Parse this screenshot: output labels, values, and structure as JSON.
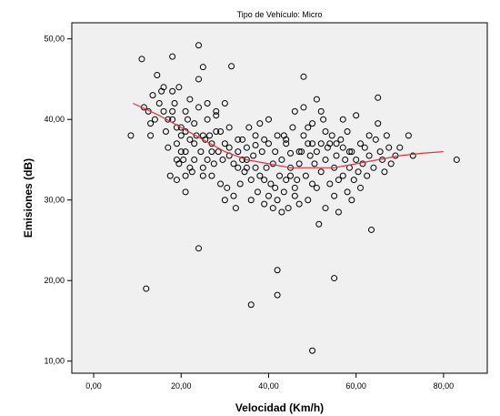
{
  "chart_data": {
    "type": "scatter",
    "title": "Tipo de Vehículo: Micro",
    "xlabel": "Velocidad (Km/h)",
    "ylabel": "Emisiones (dB)",
    "xlim": [
      -5,
      90
    ],
    "ylim": [
      8.5,
      52
    ],
    "x_ticks": [
      0,
      20,
      40,
      60,
      80
    ],
    "x_tick_labels": [
      "0,00",
      "20,00",
      "40,00",
      "60,00",
      "80,00"
    ],
    "y_ticks": [
      10,
      20,
      30,
      40,
      50
    ],
    "y_tick_labels": [
      "10,00",
      "20,00",
      "30,00",
      "40,00",
      "50,00"
    ],
    "grid": false,
    "plot_background": "#f0f0f0",
    "marker_color": "#000000",
    "fit_line_color": "#e8323c",
    "series": [
      {
        "kind": "points",
        "points": [
          [
            8.5,
            38
          ],
          [
            11,
            47.5
          ],
          [
            11.5,
            41.5
          ],
          [
            12,
            19
          ],
          [
            12.5,
            41
          ],
          [
            13,
            38
          ],
          [
            13,
            39.5
          ],
          [
            13.5,
            43
          ],
          [
            14.5,
            45.5
          ],
          [
            15,
            42
          ],
          [
            15.5,
            43.5
          ],
          [
            16,
            44
          ],
          [
            16.5,
            38.5
          ],
          [
            17,
            36.5
          ],
          [
            17,
            40
          ],
          [
            17.5,
            33
          ],
          [
            18,
            47.8
          ],
          [
            18,
            43.5
          ],
          [
            18,
            41
          ],
          [
            18,
            40
          ],
          [
            18.5,
            42
          ],
          [
            19,
            32.5
          ],
          [
            19,
            35
          ],
          [
            19,
            37
          ],
          [
            19.5,
            44
          ],
          [
            19.5,
            34.5
          ],
          [
            20,
            36
          ],
          [
            20,
            38
          ],
          [
            20,
            39
          ],
          [
            20.5,
            35
          ],
          [
            21,
            31
          ],
          [
            21,
            33
          ],
          [
            21,
            36
          ],
          [
            21,
            41
          ],
          [
            21.5,
            40
          ],
          [
            22,
            34
          ],
          [
            22,
            37.5
          ],
          [
            22.5,
            33.5
          ],
          [
            23,
            35
          ],
          [
            23,
            37
          ],
          [
            23.5,
            38
          ],
          [
            24,
            49.2
          ],
          [
            24,
            45
          ],
          [
            24,
            41.5
          ],
          [
            24,
            24
          ],
          [
            24.5,
            36
          ],
          [
            25,
            34
          ],
          [
            25,
            46.5
          ],
          [
            25,
            33
          ],
          [
            25.5,
            37.5
          ],
          [
            26,
            35
          ],
          [
            26,
            40
          ],
          [
            26.5,
            38
          ],
          [
            27,
            33
          ],
          [
            27,
            37
          ],
          [
            27.5,
            34.5
          ],
          [
            28,
            40.5
          ],
          [
            28,
            41
          ],
          [
            28.5,
            36
          ],
          [
            29,
            32
          ],
          [
            29,
            38.5
          ],
          [
            29.5,
            35
          ],
          [
            30,
            37
          ],
          [
            30,
            30
          ],
          [
            30,
            42
          ],
          [
            30.5,
            31.5
          ],
          [
            31,
            39
          ],
          [
            31,
            36.5
          ],
          [
            31.5,
            46.6
          ],
          [
            32,
            34.5
          ],
          [
            32,
            30.5
          ],
          [
            32.5,
            29
          ],
          [
            33,
            37.5
          ],
          [
            33,
            36
          ],
          [
            33.5,
            32
          ],
          [
            34,
            35
          ],
          [
            34,
            37.5
          ],
          [
            34.5,
            33.5
          ],
          [
            35,
            34
          ],
          [
            35,
            36.5
          ],
          [
            35.5,
            39
          ],
          [
            36,
            30
          ],
          [
            36,
            32.5
          ],
          [
            36,
            17
          ],
          [
            36.5,
            35.5
          ],
          [
            37,
            38
          ],
          [
            37,
            34
          ],
          [
            37.5,
            31
          ],
          [
            38,
            39.5
          ],
          [
            38,
            33
          ],
          [
            38.5,
            36
          ],
          [
            39,
            29.5
          ],
          [
            39,
            32.5
          ],
          [
            39.5,
            34
          ],
          [
            40,
            37
          ],
          [
            40,
            30.5
          ],
          [
            40,
            40
          ],
          [
            40.5,
            32
          ],
          [
            41,
            29
          ],
          [
            41,
            34.5
          ],
          [
            41.5,
            36
          ],
          [
            41.5,
            31.5
          ],
          [
            42,
            38
          ],
          [
            42,
            30
          ],
          [
            42,
            21.3
          ],
          [
            42,
            18.2
          ],
          [
            42.5,
            33
          ],
          [
            43,
            35
          ],
          [
            43,
            28.5
          ],
          [
            43.5,
            31
          ],
          [
            44,
            37.5
          ],
          [
            44,
            32.5
          ],
          [
            44.5,
            29
          ],
          [
            45,
            33
          ],
          [
            45,
            34
          ],
          [
            45.5,
            39
          ],
          [
            46,
            30.5
          ],
          [
            46,
            31.5
          ],
          [
            46.5,
            32.5
          ],
          [
            47,
            34.5
          ],
          [
            47,
            29.5
          ],
          [
            47.5,
            36
          ],
          [
            48,
            41.5
          ],
          [
            48,
            45.3
          ],
          [
            48.5,
            33
          ],
          [
            49,
            37
          ],
          [
            49,
            30
          ],
          [
            49.5,
            35.5
          ],
          [
            50,
            32
          ],
          [
            50,
            39.5
          ],
          [
            50,
            11.3
          ],
          [
            50.5,
            34.5
          ],
          [
            51,
            42.5
          ],
          [
            51,
            31.5
          ],
          [
            51.5,
            27
          ],
          [
            52,
            37
          ],
          [
            52,
            33.5
          ],
          [
            52.5,
            40
          ],
          [
            53,
            29
          ],
          [
            53,
            35
          ],
          [
            53.5,
            36.5
          ],
          [
            54,
            32
          ],
          [
            54.5,
            38
          ],
          [
            55,
            30.5
          ],
          [
            55,
            20.3
          ],
          [
            55,
            34
          ],
          [
            55.5,
            35.5
          ],
          [
            56,
            32.5
          ],
          [
            56,
            28.5
          ],
          [
            56.5,
            37.5
          ],
          [
            57,
            33
          ],
          [
            57,
            40
          ],
          [
            57.5,
            35
          ],
          [
            58,
            31
          ],
          [
            58,
            38.5
          ],
          [
            58.5,
            34
          ],
          [
            59,
            36
          ],
          [
            59,
            30
          ],
          [
            59.5,
            32.5
          ],
          [
            60,
            35
          ],
          [
            60,
            40.5
          ],
          [
            60.5,
            33.5
          ],
          [
            61,
            37
          ],
          [
            61,
            31.5
          ],
          [
            61.5,
            34.5
          ],
          [
            62,
            36.5
          ],
          [
            62.5,
            33
          ],
          [
            63,
            35.5
          ],
          [
            63,
            38
          ],
          [
            63.5,
            26.3
          ],
          [
            64,
            34
          ],
          [
            64.5,
            37.5
          ],
          [
            65,
            42.7
          ],
          [
            65,
            39.5
          ],
          [
            65.5,
            36
          ],
          [
            66,
            35
          ],
          [
            66.5,
            33.5
          ],
          [
            67,
            38
          ],
          [
            67.5,
            36.5
          ],
          [
            68,
            34.5
          ],
          [
            69,
            35.5
          ],
          [
            70,
            36.5
          ],
          [
            72,
            38
          ],
          [
            73,
            35.5
          ],
          [
            83,
            35
          ],
          [
            44,
            37
          ],
          [
            46,
            41
          ],
          [
            49,
            39
          ],
          [
            52,
            41
          ],
          [
            54,
            37
          ],
          [
            47,
            36
          ],
          [
            45,
            35.8
          ],
          [
            43.5,
            38
          ],
          [
            51,
            36
          ],
          [
            53,
            38.5
          ],
          [
            55.5,
            37
          ],
          [
            57,
            36.5
          ],
          [
            58.5,
            36
          ],
          [
            48,
            38
          ],
          [
            50,
            37
          ],
          [
            39,
            37.5
          ],
          [
            37,
            36.8
          ],
          [
            35,
            35
          ],
          [
            33,
            34
          ],
          [
            31,
            35.5
          ],
          [
            27,
            36
          ],
          [
            25,
            38
          ],
          [
            23,
            39.5
          ],
          [
            21,
            38.5
          ],
          [
            19,
            39
          ],
          [
            16,
            41
          ],
          [
            14,
            40
          ],
          [
            22,
            42.5
          ],
          [
            26,
            42
          ],
          [
            28,
            38.5
          ]
        ]
      },
      {
        "kind": "fit_line",
        "points": [
          [
            9,
            42
          ],
          [
            15,
            40.5
          ],
          [
            20,
            39
          ],
          [
            25,
            37.5
          ],
          [
            30,
            36
          ],
          [
            35,
            35
          ],
          [
            40,
            34.5
          ],
          [
            45,
            34
          ],
          [
            50,
            34
          ],
          [
            55,
            34
          ],
          [
            60,
            34.5
          ],
          [
            65,
            35
          ],
          [
            70,
            35.5
          ],
          [
            75,
            35.8
          ],
          [
            80,
            36
          ]
        ]
      }
    ]
  }
}
